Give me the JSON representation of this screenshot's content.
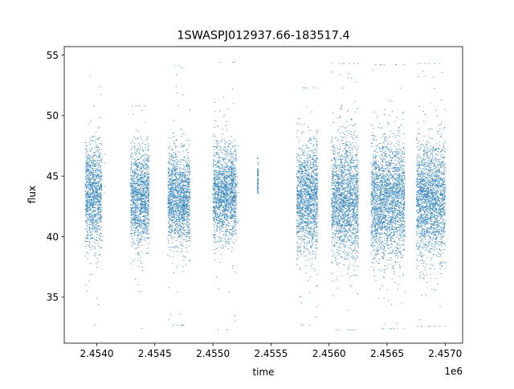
{
  "chart_data": {
    "type": "scatter",
    "title": "1SWASPJ012937.66-183517.4",
    "xlabel": "time",
    "ylabel": "flux",
    "x_offset_label": "1e6",
    "xlim": [
      2.45372,
      2.45715
    ],
    "ylim": [
      31.2,
      55.7
    ],
    "x_tick_values": [
      2.454,
      2.4545,
      2.455,
      2.4555,
      2.456,
      2.4565,
      2.457
    ],
    "x_tick_labels": [
      "2.4540",
      "2.4545",
      "2.4550",
      "2.4555",
      "2.4560",
      "2.4565",
      "2.4570"
    ],
    "y_tick_values": [
      35,
      40,
      45,
      50,
      55
    ],
    "y_tick_labels": [
      "35",
      "40",
      "45",
      "50",
      "55"
    ],
    "grid": false,
    "series": [
      {
        "color": "#1f77b4",
        "marker": "point",
        "observing_seasons": [
          {
            "x_start": 2.4539,
            "x_end": 2.45404,
            "y_center": 43.5,
            "y_spread": 2.0,
            "y_min": 32.7,
            "y_max": 53.3,
            "x_outlier_end": 2.45407
          },
          {
            "x_start": 2.45429,
            "x_end": 2.45445,
            "y_center": 43.3,
            "y_spread": 2.0,
            "y_min": 32.4,
            "y_max": 50.8
          },
          {
            "x_start": 2.45461,
            "x_end": 2.4548,
            "y_center": 43.2,
            "y_spread": 1.9,
            "y_min": 32.7,
            "y_max": 54.1
          },
          {
            "x_start": 2.455,
            "x_end": 2.4552,
            "y_center": 43.6,
            "y_spread": 1.9,
            "y_min": 32.3,
            "y_max": 54.4,
            "x_outlier_end": 2.45522
          },
          {
            "x_start": 2.45538,
            "x_end": 2.45539,
            "y_center": 44.8,
            "y_spread": 0.9,
            "y_min": 43.6,
            "y_max": 46.5
          },
          {
            "x_start": 2.45572,
            "x_end": 2.4559,
            "y_center": 43.2,
            "y_spread": 2.2,
            "y_min": 32.7,
            "y_max": 52.3
          },
          {
            "x_start": 2.45602,
            "x_end": 2.45625,
            "y_center": 43.1,
            "y_spread": 2.5,
            "y_min": 32.3,
            "y_max": 54.3
          },
          {
            "x_start": 2.45636,
            "x_end": 2.45665,
            "y_center": 43.0,
            "y_spread": 2.4,
            "y_min": 32.4,
            "y_max": 54.2
          },
          {
            "x_start": 2.45675,
            "x_end": 2.457,
            "y_center": 43.1,
            "y_spread": 2.4,
            "y_min": 32.6,
            "y_max": 54.3
          }
        ]
      }
    ]
  }
}
